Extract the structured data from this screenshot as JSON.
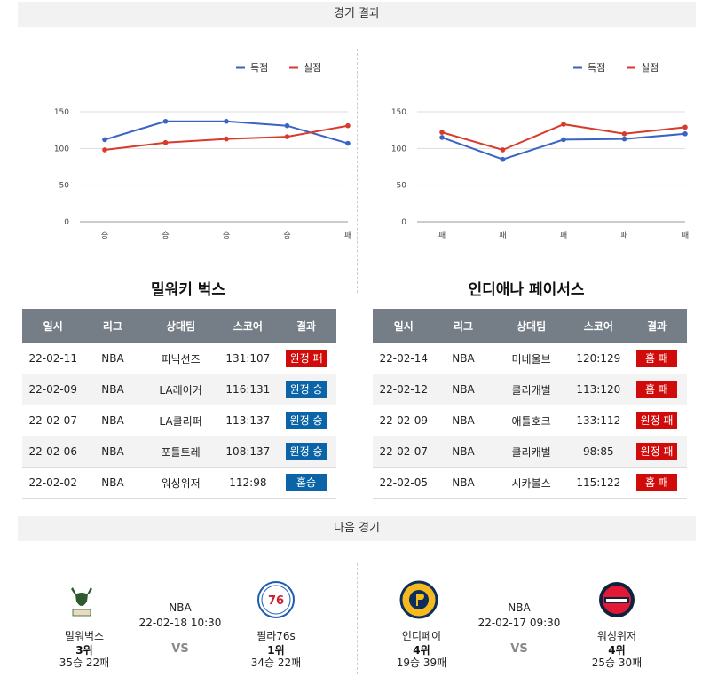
{
  "sections": {
    "results_title": "경기 결과",
    "next_title": "다음 경기"
  },
  "colors": {
    "score": "#3a63c4",
    "conceded": "#d93a2a",
    "win_badge": "#0b63a8",
    "loss_badge": "#d10a0a",
    "header": "#757d86"
  },
  "legend": {
    "score": "득점",
    "conceded": "실점"
  },
  "chart_data": [
    {
      "type": "line",
      "categories": [
        "승",
        "승",
        "승",
        "승",
        "패"
      ],
      "series": [
        {
          "name": "득점",
          "values": [
            112,
            137,
            137,
            131,
            107
          ]
        },
        {
          "name": "실점",
          "values": [
            98,
            108,
            113,
            116,
            131
          ]
        }
      ],
      "yticks": [
        0,
        50,
        100,
        150
      ],
      "ylim": [
        0,
        150
      ],
      "legend_position": "top-right",
      "grid": true
    },
    {
      "type": "line",
      "categories": [
        "패",
        "패",
        "패",
        "패",
        "패"
      ],
      "series": [
        {
          "name": "득점",
          "values": [
            115,
            85,
            112,
            113,
            120
          ]
        },
        {
          "name": "실점",
          "values": [
            122,
            98,
            133,
            120,
            129
          ]
        }
      ],
      "yticks": [
        0,
        50,
        100,
        150
      ],
      "ylim": [
        0,
        150
      ],
      "legend_position": "top-right",
      "grid": true
    }
  ],
  "teams": [
    {
      "title": "밀워키 벅스",
      "headers": [
        "일시",
        "리그",
        "상대팀",
        "스코어",
        "결과"
      ],
      "rows": [
        {
          "date": "22-02-11",
          "league": "NBA",
          "opponent": "피닉선즈",
          "score": "131:107",
          "result": "원정 패",
          "color": "red"
        },
        {
          "date": "22-02-09",
          "league": "NBA",
          "opponent": "LA레이커",
          "score": "116:131",
          "result": "원정 승",
          "color": "blue"
        },
        {
          "date": "22-02-07",
          "league": "NBA",
          "opponent": "LA클리퍼",
          "score": "113:137",
          "result": "원정 승",
          "color": "blue"
        },
        {
          "date": "22-02-06",
          "league": "NBA",
          "opponent": "포틀트레",
          "score": "108:137",
          "result": "원정 승",
          "color": "blue"
        },
        {
          "date": "22-02-02",
          "league": "NBA",
          "opponent": "워싱위저",
          "score": "112:98",
          "result": "홈승",
          "color": "blue"
        }
      ]
    },
    {
      "title": "인디애나 페이서스",
      "headers": [
        "일시",
        "리그",
        "상대팀",
        "스코어",
        "결과"
      ],
      "rows": [
        {
          "date": "22-02-14",
          "league": "NBA",
          "opponent": "미네울브",
          "score": "120:129",
          "result": "홈 패",
          "color": "red"
        },
        {
          "date": "22-02-12",
          "league": "NBA",
          "opponent": "클리캐벌",
          "score": "113:120",
          "result": "홈 패",
          "color": "red"
        },
        {
          "date": "22-02-09",
          "league": "NBA",
          "opponent": "애틀호크",
          "score": "133:112",
          "result": "원정 패",
          "color": "red"
        },
        {
          "date": "22-02-07",
          "league": "NBA",
          "opponent": "클리캐벌",
          "score": "98:85",
          "result": "원정 패",
          "color": "red"
        },
        {
          "date": "22-02-05",
          "league": "NBA",
          "opponent": "시카불스",
          "score": "115:122",
          "result": "홈 패",
          "color": "red"
        }
      ]
    }
  ],
  "next_games": [
    {
      "league": "NBA",
      "datetime": "22-02-18 10:30",
      "vs": "VS",
      "home": {
        "name": "밀워벅스",
        "rank": "3위",
        "record": "35승 22패",
        "logo": "bucks-logo"
      },
      "away": {
        "name": "필라76s",
        "rank": "1위",
        "record": "34승 22패",
        "logo": "76ers-logo"
      }
    },
    {
      "league": "NBA",
      "datetime": "22-02-17 09:30",
      "vs": "VS",
      "home": {
        "name": "인디페이",
        "rank": "4위",
        "record": "19승 39패",
        "logo": "pacers-logo"
      },
      "away": {
        "name": "워싱위저",
        "rank": "4위",
        "record": "25승 30패",
        "logo": "wizards-logo"
      }
    }
  ]
}
